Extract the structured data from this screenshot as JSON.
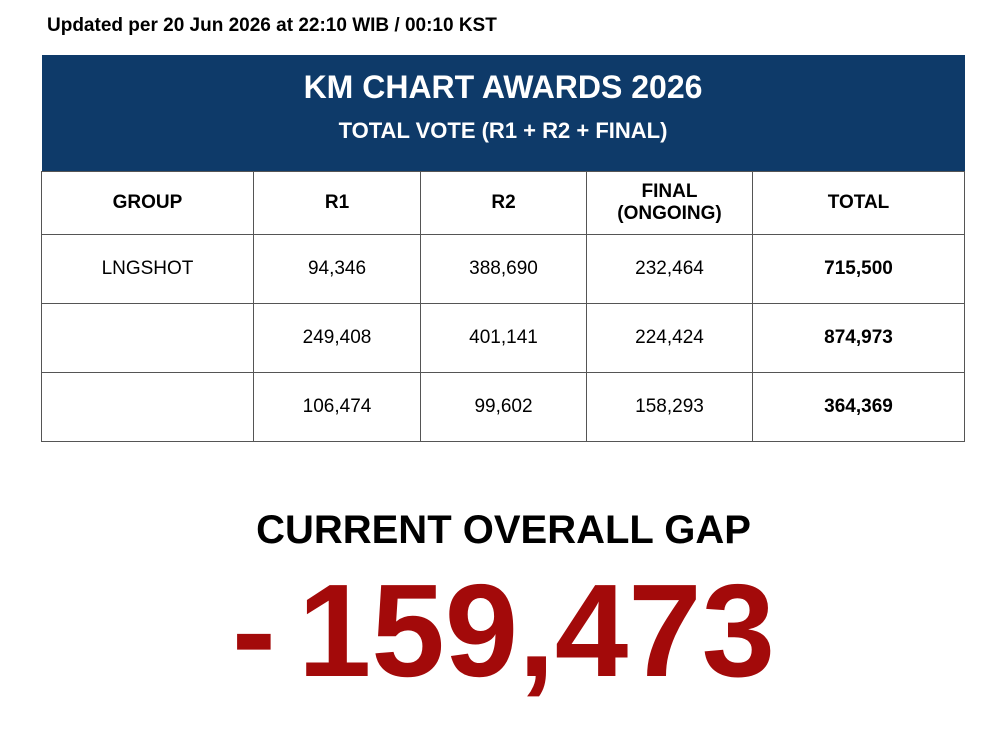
{
  "updated": "Updated per 20 Jun 2026 at 22:10 WIB / 00:10 KST",
  "table": {
    "title": "KM CHART AWARDS 2026",
    "subtitle": "TOTAL VOTE (R1 + R2 + FINAL)",
    "headers": [
      "GROUP",
      "R1",
      "R2",
      "FINAL\n(ONGOING)",
      "TOTAL"
    ],
    "rows": [
      [
        "LNGSHOT",
        "94,346",
        "388,690",
        "232,464",
        "715,500"
      ],
      [
        null,
        "249,408",
        "401,141",
        "224,424",
        "874,973"
      ],
      [
        null,
        "106,474",
        "99,602",
        "158,293",
        "364,369"
      ]
    ]
  },
  "gap": {
    "label": "CURRENT OVERALL GAP",
    "sign": "-",
    "value": "159,473"
  }
}
